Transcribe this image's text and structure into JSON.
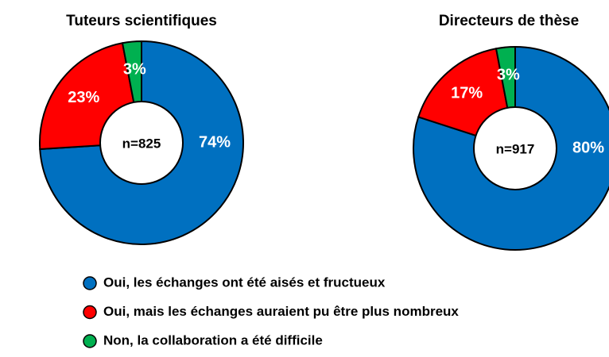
{
  "chart_data": [
    {
      "type": "pie",
      "title": "Tuteurs scientifiques",
      "categories": [
        "Oui, les échanges ont été aisés et fructueux",
        "Oui, mais les échanges auraient pu être plus nombreux",
        "Non, la collaboration a été difficile"
      ],
      "values": [
        74,
        23,
        3
      ],
      "value_labels": [
        "74%",
        "23%",
        "3%"
      ],
      "colors": [
        "#0070c0",
        "#ff0000",
        "#00b050"
      ],
      "annotation": "n=825"
    },
    {
      "type": "pie",
      "title": "Directeurs de thèse",
      "values": [
        80,
        17,
        3
      ],
      "value_labels": [
        "80%",
        "17%",
        "3%"
      ],
      "colors": [
        "#0070c0",
        "#ff0000",
        "#00b050"
      ],
      "annotation": "n=917"
    }
  ]
}
